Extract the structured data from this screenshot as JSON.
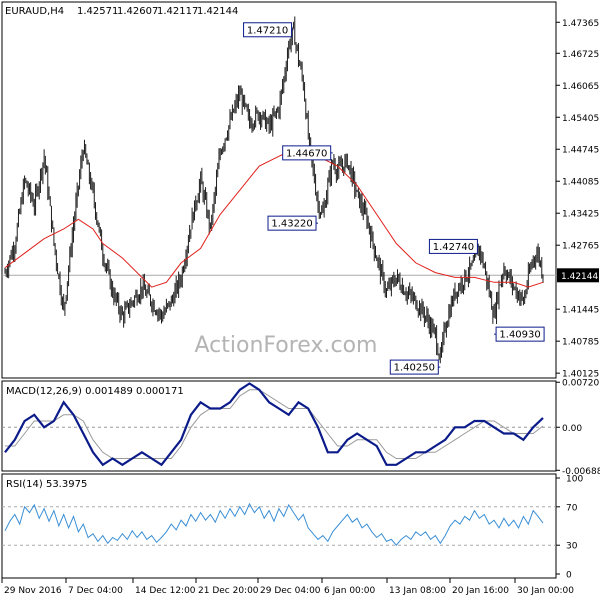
{
  "header": {
    "symbol": "EURAUD,H4",
    "open": "1.42571",
    "high": "1.42607",
    "low": "1.42117",
    "close": "1.42144"
  },
  "watermark": "ActionForex.com",
  "colors": {
    "background": "#ffffff",
    "bars": "#1c1c1c",
    "moving_average": "#e0211c",
    "macd_line": "#0b1b8a",
    "macd_signal": "#9a9a9a",
    "rsi_line": "#3a8fd6",
    "frame": "#000000",
    "annotation_border": "#0b1b8a",
    "current_price_box": "#000000",
    "watermark": "#b4b4b4"
  },
  "chart_data": [
    {
      "type": "ohlc",
      "panel": "price",
      "ylim": [
        1.40025,
        1.47783
      ],
      "y_ticks": [
        "1.47365",
        "1.46725",
        "1.46065",
        "1.45405",
        "1.44745",
        "1.44085",
        "1.43425",
        "1.42765",
        "1.42144",
        "1.41445",
        "1.40785",
        "1.40125"
      ],
      "x_ticks": [
        "29 Nov 2016",
        "7 Dec 04:00",
        "14 Dec 12:00",
        "21 Dec 20:00",
        "29 Dec 04:00",
        "6 Jan 00:00",
        "13 Jan 08:00",
        "20 Jan 16:00",
        "30 Jan 00:00"
      ],
      "current_price": 1.42144,
      "current_price_label": "1.42144",
      "price_path": [
        [
          0,
          1.422
        ],
        [
          2,
          1.428
        ],
        [
          4,
          1.441
        ],
        [
          6,
          1.436
        ],
        [
          8,
          1.446
        ],
        [
          10,
          1.428
        ],
        [
          11,
          1.421
        ],
        [
          12,
          1.414
        ],
        [
          14,
          1.432
        ],
        [
          16,
          1.448
        ],
        [
          18,
          1.438
        ],
        [
          20,
          1.426
        ],
        [
          22,
          1.418
        ],
        [
          24,
          1.413
        ],
        [
          26,
          1.416
        ],
        [
          28,
          1.419
        ],
        [
          30,
          1.416
        ],
        [
          32,
          1.413
        ],
        [
          34,
          1.416
        ],
        [
          36,
          1.421
        ],
        [
          38,
          1.432
        ],
        [
          40,
          1.441
        ],
        [
          42,
          1.431
        ],
        [
          44,
          1.447
        ],
        [
          46,
          1.453
        ],
        [
          48,
          1.459
        ],
        [
          50,
          1.453
        ],
        [
          52,
          1.455
        ],
        [
          54,
          1.452
        ],
        [
          56,
          1.456
        ],
        [
          57,
          1.462
        ],
        [
          58,
          1.469
        ],
        [
          59,
          1.472
        ],
        [
          60,
          1.466
        ],
        [
          61,
          1.461
        ],
        [
          62,
          1.45
        ],
        [
          63,
          1.443
        ],
        [
          64,
          1.436
        ],
        [
          65,
          1.434
        ],
        [
          66,
          1.44
        ],
        [
          67,
          1.445
        ],
        [
          68,
          1.443
        ],
        [
          70,
          1.445
        ],
        [
          72,
          1.438
        ],
        [
          74,
          1.433
        ],
        [
          76,
          1.425
        ],
        [
          78,
          1.418
        ],
        [
          80,
          1.421
        ],
        [
          82,
          1.418
        ],
        [
          84,
          1.416
        ],
        [
          86,
          1.413
        ],
        [
          88,
          1.409
        ],
        [
          89,
          1.404
        ],
        [
          90,
          1.411
        ],
        [
          92,
          1.418
        ],
        [
          94,
          1.421
        ],
        [
          96,
          1.424
        ],
        [
          97,
          1.427
        ],
        [
          98,
          1.423
        ],
        [
          99,
          1.418
        ],
        [
          100,
          1.413
        ],
        [
          101,
          1.419
        ],
        [
          102,
          1.423
        ],
        [
          104,
          1.419
        ],
        [
          106,
          1.416
        ],
        [
          107,
          1.421
        ],
        [
          108,
          1.425
        ],
        [
          109,
          1.426
        ],
        [
          110,
          1.4215
        ]
      ],
      "moving_average_path": [
        [
          0,
          1.423
        ],
        [
          4,
          1.426
        ],
        [
          8,
          1.429
        ],
        [
          12,
          1.431
        ],
        [
          15,
          1.433
        ],
        [
          18,
          1.431
        ],
        [
          20,
          1.428
        ],
        [
          24,
          1.425
        ],
        [
          28,
          1.421
        ],
        [
          30,
          1.419
        ],
        [
          33,
          1.42
        ],
        [
          36,
          1.424
        ],
        [
          40,
          1.427
        ],
        [
          44,
          1.434
        ],
        [
          48,
          1.439
        ],
        [
          52,
          1.444
        ],
        [
          56,
          1.446
        ],
        [
          60,
          1.448
        ],
        [
          64,
          1.446
        ],
        [
          68,
          1.444
        ],
        [
          72,
          1.44
        ],
        [
          76,
          1.434
        ],
        [
          80,
          1.428
        ],
        [
          84,
          1.424
        ],
        [
          88,
          1.422
        ],
        [
          92,
          1.421
        ],
        [
          96,
          1.421
        ],
        [
          100,
          1.42
        ],
        [
          104,
          1.42
        ],
        [
          107,
          1.419
        ],
        [
          110,
          1.42
        ]
      ],
      "annotations": [
        {
          "label": "1.47210",
          "x": 59,
          "y": 1.4721,
          "side": "left"
        },
        {
          "label": "1.44670",
          "x": 67,
          "y": 1.4467,
          "side": "left"
        },
        {
          "label": "1.43220",
          "x": 64,
          "y": 1.4322,
          "side": "left"
        },
        {
          "label": "1.42740",
          "x": 97,
          "y": 1.4274,
          "side": "left"
        },
        {
          "label": "1.40930",
          "x": 100,
          "y": 1.4093,
          "side": "right"
        },
        {
          "label": "1.40250",
          "x": 89,
          "y": 1.4025,
          "side": "left"
        }
      ]
    },
    {
      "type": "line",
      "panel": "macd",
      "title": "MACD(12,26,9) 0.001489 0.000171",
      "ylim": [
        -0.007,
        0.0074
      ],
      "y_ticks": [
        "0.007201",
        "0.00",
        "-0.006888"
      ],
      "macd": [
        [
          0,
          -0.004
        ],
        [
          2,
          -0.002
        ],
        [
          4,
          0.001
        ],
        [
          6,
          0.002
        ],
        [
          8,
          0.0
        ],
        [
          10,
          0.001
        ],
        [
          12,
          0.004
        ],
        [
          14,
          0.002
        ],
        [
          16,
          -0.001
        ],
        [
          18,
          -0.004
        ],
        [
          20,
          -0.006
        ],
        [
          22,
          -0.005
        ],
        [
          24,
          -0.006
        ],
        [
          26,
          -0.005
        ],
        [
          28,
          -0.004
        ],
        [
          30,
          -0.005
        ],
        [
          32,
          -0.006
        ],
        [
          34,
          -0.004
        ],
        [
          36,
          -0.002
        ],
        [
          38,
          0.002
        ],
        [
          40,
          0.004
        ],
        [
          42,
          0.003
        ],
        [
          44,
          0.003
        ],
        [
          46,
          0.004
        ],
        [
          48,
          0.006
        ],
        [
          50,
          0.007
        ],
        [
          52,
          0.006
        ],
        [
          54,
          0.004
        ],
        [
          56,
          0.003
        ],
        [
          58,
          0.002
        ],
        [
          60,
          0.004
        ],
        [
          62,
          0.003
        ],
        [
          64,
          0.0
        ],
        [
          66,
          -0.004
        ],
        [
          68,
          -0.004
        ],
        [
          70,
          -0.002
        ],
        [
          72,
          -0.001
        ],
        [
          74,
          -0.002
        ],
        [
          76,
          -0.003
        ],
        [
          78,
          -0.006
        ],
        [
          80,
          -0.006
        ],
        [
          82,
          -0.005
        ],
        [
          84,
          -0.004
        ],
        [
          86,
          -0.004
        ],
        [
          88,
          -0.003
        ],
        [
          90,
          -0.002
        ],
        [
          92,
          0.0
        ],
        [
          94,
          0.0
        ],
        [
          96,
          0.001
        ],
        [
          98,
          0.001
        ],
        [
          100,
          0.0
        ],
        [
          102,
          -0.001
        ],
        [
          104,
          -0.001
        ],
        [
          106,
          -0.002
        ],
        [
          108,
          0.0
        ],
        [
          110,
          0.0015
        ]
      ],
      "signal": [
        [
          0,
          -0.003
        ],
        [
          2,
          -0.003
        ],
        [
          4,
          -0.001
        ],
        [
          6,
          0.001
        ],
        [
          8,
          0.001
        ],
        [
          10,
          0.001
        ],
        [
          12,
          0.002
        ],
        [
          14,
          0.002
        ],
        [
          16,
          0.001
        ],
        [
          18,
          -0.002
        ],
        [
          20,
          -0.004
        ],
        [
          22,
          -0.005
        ],
        [
          24,
          -0.005
        ],
        [
          26,
          -0.005
        ],
        [
          28,
          -0.005
        ],
        [
          30,
          -0.005
        ],
        [
          32,
          -0.005
        ],
        [
          34,
          -0.005
        ],
        [
          36,
          -0.003
        ],
        [
          38,
          0.0
        ],
        [
          40,
          0.002
        ],
        [
          42,
          0.003
        ],
        [
          44,
          0.003
        ],
        [
          46,
          0.003
        ],
        [
          48,
          0.005
        ],
        [
          50,
          0.006
        ],
        [
          52,
          0.006
        ],
        [
          54,
          0.005
        ],
        [
          56,
          0.004
        ],
        [
          58,
          0.003
        ],
        [
          60,
          0.003
        ],
        [
          62,
          0.003
        ],
        [
          64,
          0.001
        ],
        [
          66,
          -0.001
        ],
        [
          68,
          -0.003
        ],
        [
          70,
          -0.003
        ],
        [
          72,
          -0.002
        ],
        [
          74,
          -0.002
        ],
        [
          76,
          -0.002
        ],
        [
          78,
          -0.004
        ],
        [
          80,
          -0.005
        ],
        [
          82,
          -0.005
        ],
        [
          84,
          -0.005
        ],
        [
          86,
          -0.004
        ],
        [
          88,
          -0.004
        ],
        [
          90,
          -0.003
        ],
        [
          92,
          -0.002
        ],
        [
          94,
          -0.001
        ],
        [
          96,
          0.0
        ],
        [
          98,
          0.001
        ],
        [
          100,
          0.001
        ],
        [
          102,
          0.0
        ],
        [
          104,
          -0.001
        ],
        [
          106,
          -0.001
        ],
        [
          108,
          -0.001
        ],
        [
          110,
          0.0002
        ]
      ]
    },
    {
      "type": "line",
      "panel": "rsi",
      "title": "RSI(14) 53.3975",
      "ylim": [
        0,
        100
      ],
      "y_ticks": [
        "100",
        "70",
        "30",
        "0"
      ],
      "reference_levels": [
        70,
        30
      ],
      "rsi": [
        [
          0,
          45
        ],
        [
          1,
          55
        ],
        [
          2,
          62
        ],
        [
          3,
          52
        ],
        [
          4,
          70
        ],
        [
          5,
          64
        ],
        [
          6,
          72
        ],
        [
          7,
          58
        ],
        [
          8,
          68
        ],
        [
          9,
          55
        ],
        [
          10,
          66
        ],
        [
          11,
          50
        ],
        [
          12,
          62
        ],
        [
          13,
          48
        ],
        [
          14,
          60
        ],
        [
          15,
          44
        ],
        [
          16,
          52
        ],
        [
          17,
          38
        ],
        [
          18,
          42
        ],
        [
          19,
          34
        ],
        [
          20,
          40
        ],
        [
          21,
          32
        ],
        [
          22,
          38
        ],
        [
          23,
          35
        ],
        [
          24,
          42
        ],
        [
          25,
          36
        ],
        [
          26,
          45
        ],
        [
          27,
          38
        ],
        [
          28,
          44
        ],
        [
          29,
          36
        ],
        [
          30,
          40
        ],
        [
          31,
          33
        ],
        [
          32,
          38
        ],
        [
          33,
          44
        ],
        [
          34,
          52
        ],
        [
          35,
          46
        ],
        [
          36,
          56
        ],
        [
          37,
          50
        ],
        [
          38,
          62
        ],
        [
          39,
          55
        ],
        [
          40,
          64
        ],
        [
          41,
          56
        ],
        [
          42,
          62
        ],
        [
          43,
          54
        ],
        [
          44,
          66
        ],
        [
          45,
          58
        ],
        [
          46,
          68
        ],
        [
          47,
          60
        ],
        [
          48,
          70
        ],
        [
          49,
          62
        ],
        [
          50,
          73
        ],
        [
          51,
          64
        ],
        [
          52,
          70
        ],
        [
          53,
          58
        ],
        [
          54,
          66
        ],
        [
          55,
          55
        ],
        [
          56,
          68
        ],
        [
          57,
          60
        ],
        [
          58,
          72
        ],
        [
          59,
          64
        ],
        [
          60,
          56
        ],
        [
          61,
          62
        ],
        [
          62,
          48
        ],
        [
          63,
          42
        ],
        [
          64,
          36
        ],
        [
          65,
          40
        ],
        [
          66,
          34
        ],
        [
          67,
          44
        ],
        [
          68,
          50
        ],
        [
          69,
          56
        ],
        [
          70,
          62
        ],
        [
          71,
          54
        ],
        [
          72,
          58
        ],
        [
          73,
          48
        ],
        [
          74,
          52
        ],
        [
          75,
          44
        ],
        [
          76,
          38
        ],
        [
          77,
          42
        ],
        [
          78,
          34
        ],
        [
          79,
          36
        ],
        [
          80,
          30
        ],
        [
          81,
          36
        ],
        [
          82,
          40
        ],
        [
          83,
          36
        ],
        [
          84,
          44
        ],
        [
          85,
          40
        ],
        [
          86,
          44
        ],
        [
          87,
          36
        ],
        [
          88,
          40
        ],
        [
          89,
          32
        ],
        [
          90,
          40
        ],
        [
          91,
          50
        ],
        [
          92,
          56
        ],
        [
          93,
          52
        ],
        [
          94,
          60
        ],
        [
          95,
          56
        ],
        [
          96,
          66
        ],
        [
          97,
          58
        ],
        [
          98,
          62
        ],
        [
          99,
          52
        ],
        [
          100,
          56
        ],
        [
          101,
          48
        ],
        [
          102,
          58
        ],
        [
          103,
          50
        ],
        [
          104,
          56
        ],
        [
          105,
          48
        ],
        [
          106,
          60
        ],
        [
          107,
          52
        ],
        [
          108,
          66
        ],
        [
          109,
          60
        ],
        [
          110,
          53
        ]
      ]
    }
  ]
}
